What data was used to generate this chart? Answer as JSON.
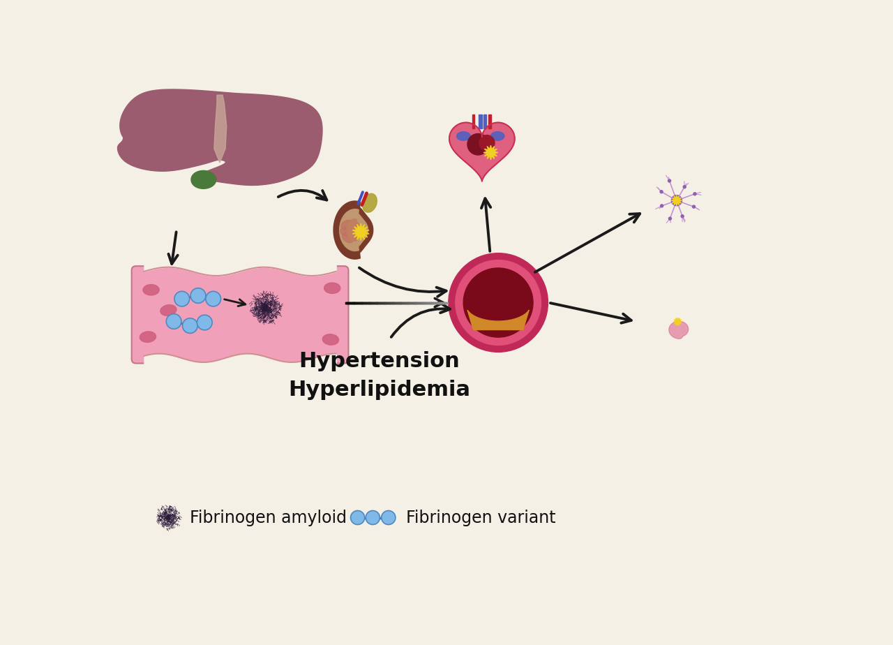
{
  "background_color": "#f5f0e6",
  "text_hypertension": "Hypertension",
  "text_hyperlipidemia": "Hyperlipidemia",
  "text_fibrinogen_amyloid": "Fibrinogen amyloid",
  "text_fibrinogen_variant": "Fibrinogen variant",
  "text_fontsize": 22,
  "legend_fontsize": 17,
  "liver_color": "#9a5c6e",
  "liver_light": "#b07888",
  "liver_duct": "#c8a898",
  "gallbladder_color": "#4a7a3a",
  "kidney_outer": "#7a3a2a",
  "kidney_inner": "#b07050",
  "kidney_pelvis": "#c08060",
  "kidney_cortex": "#c09870",
  "vessel_fill": "#f0a0b8",
  "vessel_border": "#d08898",
  "blood_cell_color": "#d06080",
  "arrow_color": "#1a1a1a",
  "heart_outer": "#c83050",
  "heart_pink": "#e06080",
  "heart_blue": "#5060c0",
  "heart_dark": "#7a1020",
  "neuron_purple": "#9060b0",
  "neuron_dendrite": "#c090d0",
  "gut_pink": "#e090a8",
  "gut_light": "#f0b0c0",
  "amyloid_color": "#2a1a3a",
  "fibrinogen_blue": "#80b8e8",
  "starburst_yellow": "#f0d020",
  "clot_outer": "#c02858",
  "clot_mid": "#e05078",
  "clot_dark": "#7a0a1a",
  "clot_orange": "#d08828"
}
